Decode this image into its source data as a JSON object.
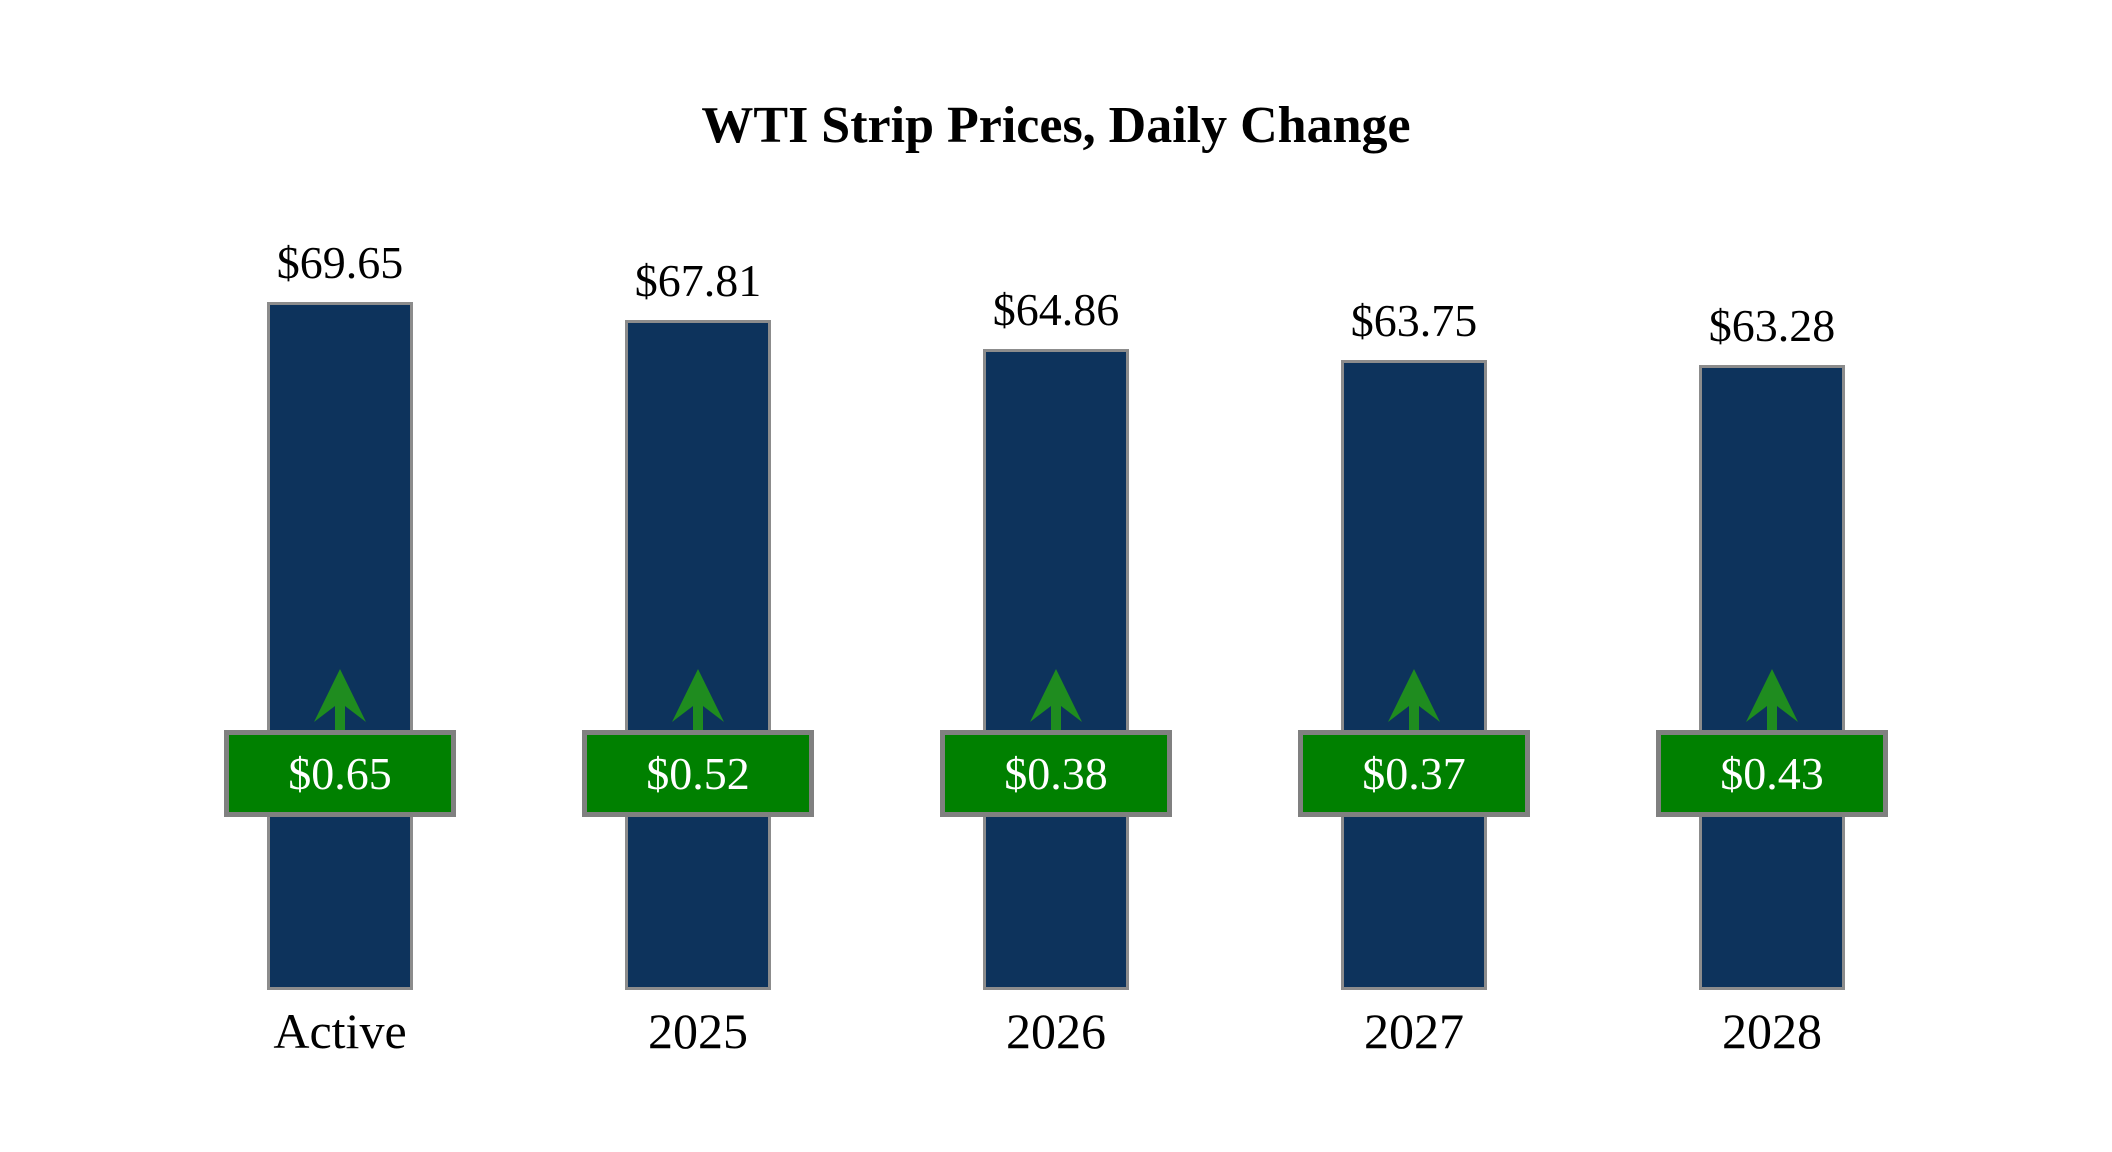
{
  "chart": {
    "title": "WTI Strip Prices, Daily Change"
  },
  "chart_data": {
    "type": "bar",
    "title": "WTI Strip Prices, Daily Change",
    "categories": [
      "Active",
      "2025",
      "2026",
      "2027",
      "2028"
    ],
    "series": [
      {
        "name": "Strip Price",
        "values": [
          69.65,
          67.81,
          64.86,
          63.75,
          63.28
        ],
        "labels": [
          "$69.65",
          "$67.81",
          "$64.86",
          "$63.75",
          "$63.28"
        ]
      },
      {
        "name": "Daily Change",
        "values": [
          0.65,
          0.52,
          0.38,
          0.37,
          0.43
        ],
        "labels": [
          "$0.65",
          "$0.52",
          "$0.38",
          "$0.37",
          "$0.43"
        ],
        "direction": "up"
      }
    ],
    "ylim": [
      0,
      84
    ],
    "xlabel": "",
    "ylabel": "",
    "grid": false,
    "legend": "none",
    "colors": {
      "bar_fill": "#0d335c",
      "bar_border": "#8c8c8c",
      "badge_fill": "#008000",
      "badge_border": "#808080",
      "arrow": "#1f8c1f",
      "value_text": "#000000",
      "badge_text": "#ffffff",
      "category_text": "#000000",
      "background": "#ffffff"
    }
  }
}
